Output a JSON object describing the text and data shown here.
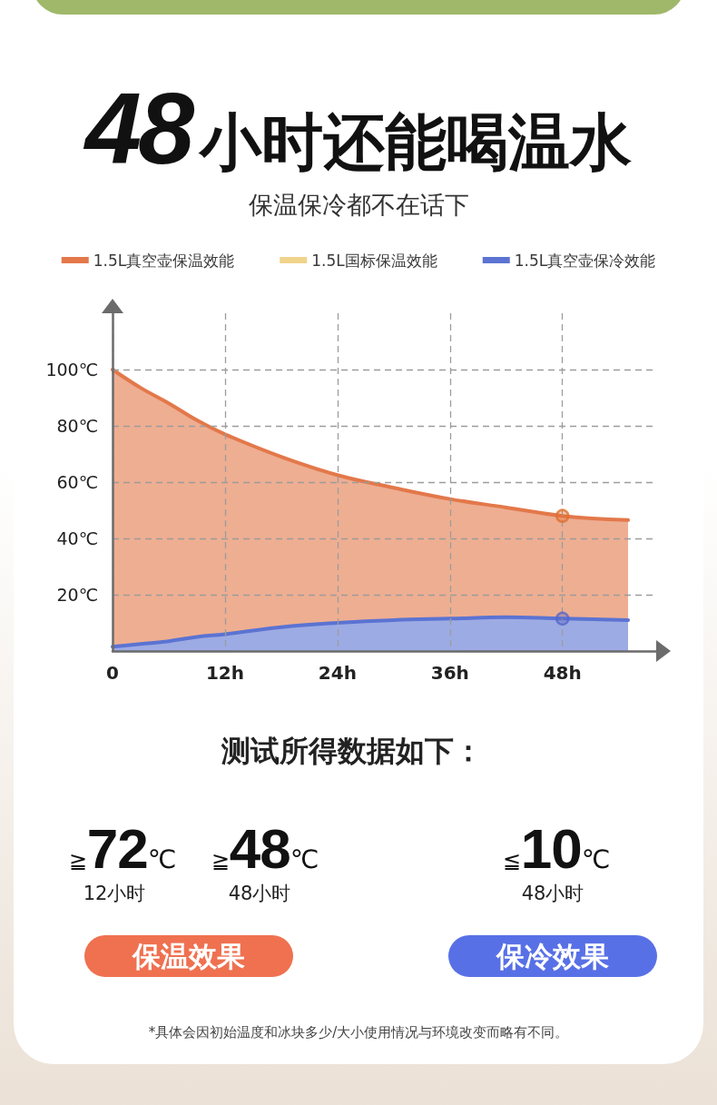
{
  "chart_data": {
    "type": "area",
    "title": "48小时还能喝温水",
    "subtitle": "保温保冷都不在话下",
    "x": [
      0,
      3,
      6,
      9,
      12,
      18,
      24,
      30,
      36,
      42,
      48,
      55
    ],
    "series": [
      {
        "name": "1.5L真空壶保温效能",
        "color": "#e3784a",
        "values": [
          100,
          93.5,
          88,
          82,
          77,
          69,
          62.5,
          58,
          54,
          51,
          48,
          46.5
        ]
      },
      {
        "name": "1.5L国标保温效能",
        "color": "#f0d48c",
        "values": [
          null,
          null,
          null,
          null,
          null,
          null,
          null,
          null,
          null,
          null,
          null,
          null
        ]
      },
      {
        "name": "1.5L真空壶保冷效能",
        "color": "#5b73d2",
        "values": [
          1.5,
          2.5,
          3.5,
          5,
          6,
          8.5,
          10,
          11,
          11.5,
          12,
          11.5,
          11
        ]
      },
      {
        "type": "scatter",
        "x": [
          48,
          48
        ],
        "values": [
          48,
          11.5
        ],
        "colors": [
          "#e07030",
          "#5566cc"
        ],
        "marker": "circle"
      }
    ],
    "xlim": [
      0,
      58
    ],
    "xticks": [
      0,
      {
        "value": 12,
        "label": "12h"
      },
      {
        "value": 24,
        "label": "24h"
      },
      {
        "value": 36,
        "label": "36h"
      },
      {
        "value": 48,
        "label": "48h"
      }
    ],
    "ylim": [
      0,
      120
    ],
    "yticks": [
      {
        "value": 20,
        "label": "20℃"
      },
      {
        "value": 40,
        "label": "40℃"
      },
      {
        "value": 60,
        "label": "60℃"
      },
      {
        "value": 80,
        "label": "80℃"
      },
      {
        "value": 100,
        "label": "100℃"
      }
    ],
    "grid": true,
    "legend": "top",
    "marker": "none",
    "annotations": [
      "测试所得数据如下：",
      "≧72℃",
      "12小时",
      "≧48℃",
      "48小时",
      "≦10℃",
      "48小时",
      "保温效果",
      "保冷效果",
      "*具体会因初始温度和冰块多少/大小使用情况与环境改变而略有不同。"
    ]
  }
}
